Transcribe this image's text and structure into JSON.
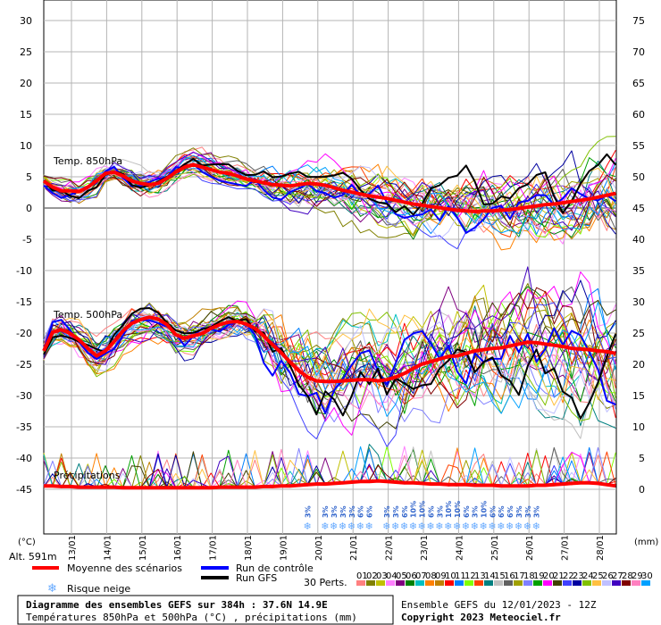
{
  "chart_data": {
    "type": "line",
    "title": "Diagramme des ensembles GEFS sur 384h : 37.6N 14.9E",
    "subtitle": "Températures 850hPa et 500hPa (°C) , précipitations (mm)",
    "run_info": "Ensemble GEFS du 12/01/2023 - 12Z",
    "copyright": "Copyright 2023 Meteociel.fr",
    "altitude": "Alt. 591m",
    "left_unit": "(°C)",
    "right_unit": "(mm)",
    "left_axis_ticks": [
      "30",
      "25",
      "20",
      "15",
      "10",
      "5",
      "0",
      "-5",
      "-10",
      "-15",
      "-20",
      "-25",
      "-30",
      "-35",
      "-40",
      "-45"
    ],
    "right_axis_ticks": [
      "75",
      "70",
      "65",
      "60",
      "55",
      "50",
      "45",
      "40",
      "35",
      "30",
      "25",
      "20",
      "15",
      "10",
      "5",
      "0"
    ],
    "x_axis_labels": [
      "13/01",
      "14/01",
      "15/01",
      "16/01",
      "17/01",
      "18/01",
      "19/01",
      "20/01",
      "21/01",
      "22/01",
      "23/01",
      "24/01",
      "25/01",
      "26/01",
      "27/01",
      "28/01"
    ],
    "panel_labels": [
      "Temp. 850hPa",
      "Temp. 500hPa",
      "Précipitations"
    ],
    "x_steps": 66,
    "t850_mean": [
      4.2,
      3.2,
      2.6,
      2.6,
      2.5,
      3.2,
      4.2,
      5.4,
      5.6,
      5.0,
      4.2,
      3.8,
      3.6,
      3.8,
      4.6,
      5.6,
      6.4,
      6.8,
      6.4,
      6.0,
      5.6,
      5.4,
      5.0,
      4.5,
      4.2,
      3.9,
      3.6,
      3.5,
      3.4,
      3.6,
      3.8,
      3.7,
      3.5,
      3.1,
      2.7,
      2.4,
      2.1,
      1.8,
      1.6,
      1.4,
      1.1,
      0.8,
      0.5,
      0.3,
      0.1,
      -0.1,
      -0.3,
      -0.5,
      -0.6,
      -0.7,
      -0.6,
      -0.6,
      -0.5,
      -0.4,
      -0.2,
      0.0,
      0.2,
      0.4,
      0.5,
      0.7,
      0.9,
      1.1,
      1.3,
      1.6,
      1.9,
      2.2
    ],
    "t500_mean": [
      -23.0,
      -20.0,
      -19.6,
      -20.2,
      -21.2,
      -22.6,
      -23.8,
      -23.0,
      -21.5,
      -19.8,
      -18.6,
      -18.0,
      -17.6,
      -17.9,
      -18.8,
      -20.4,
      -21.0,
      -20.6,
      -20.2,
      -19.4,
      -18.8,
      -18.4,
      -18.3,
      -18.7,
      -19.4,
      -20.6,
      -22.0,
      -23.3,
      -24.8,
      -26.2,
      -27.2,
      -27.8,
      -27.9,
      -27.9,
      -27.8,
      -27.7,
      -27.6,
      -27.6,
      -27.8,
      -27.6,
      -27.2,
      -26.6,
      -25.8,
      -25.1,
      -24.7,
      -24.3,
      -23.9,
      -23.8,
      -23.4,
      -23.0,
      -22.8,
      -22.6,
      -22.5,
      -22.2,
      -21.9,
      -21.6,
      -21.7,
      -21.9,
      -22.1,
      -22.3,
      -22.6,
      -22.7,
      -22.8,
      -23.0,
      -23.1,
      -23.4
    ],
    "precip_mean": [
      0.4,
      0.4,
      0.3,
      0.3,
      0.2,
      0.2,
      0.2,
      0.2,
      0.2,
      0.1,
      0.1,
      0.1,
      0.1,
      0.1,
      0.1,
      0.1,
      0.1,
      0.1,
      0.1,
      0.1,
      0.2,
      0.2,
      0.2,
      0.2,
      0.2,
      0.3,
      0.3,
      0.4,
      0.4,
      0.5,
      0.6,
      0.7,
      0.7,
      0.8,
      0.9,
      1.0,
      1.1,
      1.1,
      1.2,
      1.1,
      1.0,
      0.9,
      0.9,
      0.8,
      0.7,
      0.7,
      0.6,
      0.6,
      0.6,
      0.5,
      0.5,
      0.5,
      0.4,
      0.4,
      0.4,
      0.4,
      0.5,
      0.5,
      0.6,
      0.7,
      0.8,
      0.9,
      0.9,
      0.8,
      0.6,
      0.4
    ],
    "snow_risk_labels": [
      "3%",
      "3%",
      "3%",
      "3%",
      "3%",
      "6%",
      "6%",
      "3%",
      "3%",
      "6%",
      "10%",
      "10%",
      "6%",
      "3%",
      "10%",
      "10%",
      "6%",
      "3%",
      "10%",
      "6%",
      "6%",
      "6%",
      "3%",
      "3%",
      "3%"
    ],
    "snow_risk_steps": [
      30,
      32,
      33,
      34,
      35,
      36,
      37,
      39,
      40,
      41,
      42,
      43,
      44,
      45,
      46,
      47,
      48,
      49,
      50,
      51,
      52,
      53,
      54,
      55,
      56
    ]
  },
  "legend": {
    "mean": "Moyenne des scénarios",
    "control": "Run de contrôle",
    "gfs": "Run GFS",
    "snow": "Risque neige",
    "perts": "30 Perts.",
    "member_numbers": [
      "01",
      "02",
      "03",
      "04",
      "05",
      "06",
      "07",
      "08",
      "09",
      "10",
      "11",
      "12",
      "13",
      "14",
      "15",
      "16",
      "17",
      "18",
      "19",
      "20",
      "21",
      "22",
      "23",
      "24",
      "25",
      "26",
      "27",
      "28",
      "29",
      "30"
    ]
  },
  "colors": {
    "mean": "#ff0000",
    "control": "#0000ff",
    "gfs": "#000000",
    "snow": "#66aaff",
    "grid": "#b4b4b4",
    "members": [
      "#ff8080",
      "#808000",
      "#c0c000",
      "#ff80ff",
      "#800080",
      "#008000",
      "#00c0c0",
      "#ff8000",
      "#c08000",
      "#ff0000",
      "#0080ff",
      "#80ff00",
      "#ff4000",
      "#008080",
      "#c0c0c0",
      "#606060",
      "#a0a000",
      "#8080ff",
      "#00a000",
      "#ff00ff",
      "#404000",
      "#4040ff",
      "#0000a0",
      "#80c000",
      "#ffc040",
      "#c0c0ff",
      "#4000c0",
      "#800000",
      "#ff80c0",
      "#00a0ff"
    ]
  }
}
